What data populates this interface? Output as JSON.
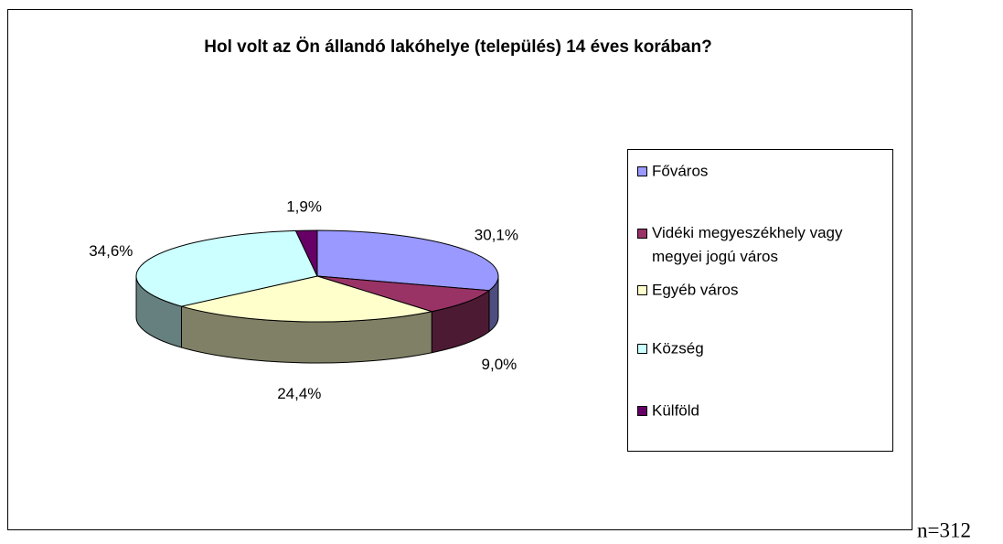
{
  "chart_data": {
    "type": "pie",
    "title": "Hol volt az Ön állandó lakóhelye (település) 14 éves korában?",
    "categories": [
      "Főváros",
      "Vidéki megyeszékhely vagy megyei jogú város",
      "Egyéb város",
      "Község",
      "Külföld"
    ],
    "values": [
      30.1,
      9.0,
      24.4,
      34.6,
      1.9
    ],
    "value_labels": [
      "30,1%",
      "9,0%",
      "24,4%",
      "34,6%",
      "1,9%"
    ],
    "colors": [
      "#9999ff",
      "#993366",
      "#ffffcc",
      "#ccffff",
      "#660066"
    ],
    "legend": "right",
    "note": "n=312"
  }
}
